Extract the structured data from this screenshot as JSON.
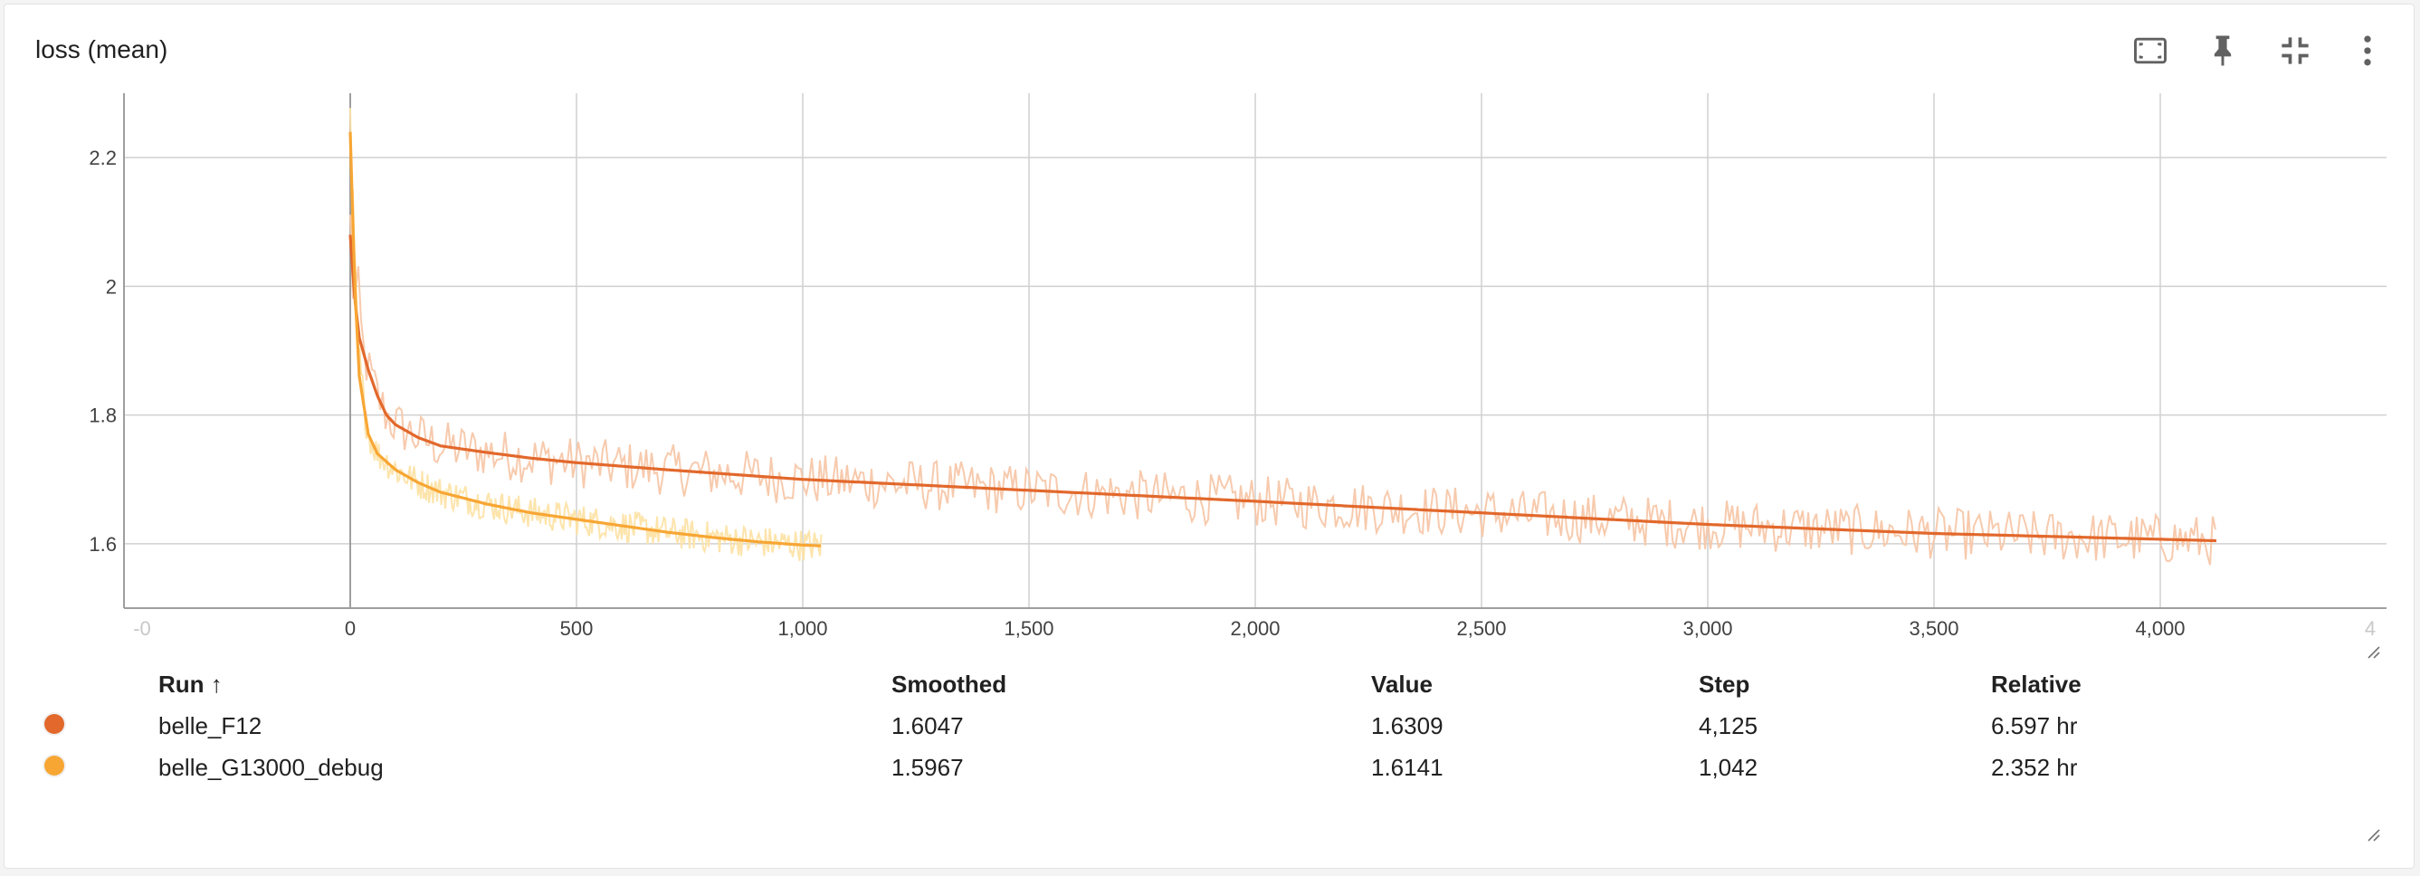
{
  "card": {
    "title": "loss (mean)"
  },
  "toolbar": [
    {
      "name": "fit-domain-button",
      "icon": "fit-domain-icon"
    },
    {
      "name": "pin-button",
      "icon": "pin-icon"
    },
    {
      "name": "collapse-button",
      "icon": "collapse-icon"
    },
    {
      "name": "more-options-button",
      "icon": "more-vert-icon"
    }
  ],
  "colors": {
    "belle_F12": "#e2682c",
    "belle_F12_raw": "#f7c7a9",
    "belle_G13000_debug": "#f7a634",
    "belle_G13000_debug_raw": "#fde3a6",
    "grid": "#d0d0d0",
    "axis": "#9e9e9e"
  },
  "chart_data": {
    "type": "line",
    "title": "loss (mean)",
    "xlim": [
      -500,
      4500
    ],
    "ylim": [
      1.5,
      2.3
    ],
    "x_ticks": [
      0,
      500,
      1000,
      1500,
      2000,
      2500,
      3000,
      3500,
      4000
    ],
    "x_tick_labels": [
      "0",
      "500",
      "1,000",
      "1,500",
      "2,000",
      "2,500",
      "3,000",
      "3,500",
      "4,000"
    ],
    "x_edge_labels": [
      "-0",
      "4"
    ],
    "y_ticks": [
      1.6,
      1.8,
      2.0,
      2.2
    ],
    "y_tick_labels": [
      "1.6",
      "1.8",
      "2",
      "2.2"
    ],
    "grid": true,
    "series": [
      {
        "name": "belle_F12",
        "smoothed": [
          [
            0,
            2.08
          ],
          [
            10,
            1.98
          ],
          [
            20,
            1.92
          ],
          [
            40,
            1.87
          ],
          [
            60,
            1.83
          ],
          [
            80,
            1.8
          ],
          [
            100,
            1.785
          ],
          [
            150,
            1.765
          ],
          [
            200,
            1.752
          ],
          [
            300,
            1.742
          ],
          [
            400,
            1.733
          ],
          [
            500,
            1.726
          ],
          [
            700,
            1.715
          ],
          [
            1000,
            1.7
          ],
          [
            1500,
            1.683
          ],
          [
            2000,
            1.666
          ],
          [
            2500,
            1.648
          ],
          [
            3000,
            1.63
          ],
          [
            3500,
            1.616
          ],
          [
            4000,
            1.607
          ],
          [
            4125,
            1.6047
          ]
        ],
        "raw_max_step": 4125,
        "raw_noise": 0.04
      },
      {
        "name": "belle_G13000_debug",
        "smoothed": [
          [
            0,
            2.24
          ],
          [
            10,
            2.0
          ],
          [
            20,
            1.86
          ],
          [
            40,
            1.77
          ],
          [
            60,
            1.74
          ],
          [
            100,
            1.715
          ],
          [
            150,
            1.695
          ],
          [
            200,
            1.68
          ],
          [
            300,
            1.662
          ],
          [
            400,
            1.648
          ],
          [
            500,
            1.638
          ],
          [
            600,
            1.628
          ],
          [
            700,
            1.618
          ],
          [
            800,
            1.61
          ],
          [
            900,
            1.603
          ],
          [
            1000,
            1.598
          ],
          [
            1042,
            1.5967
          ]
        ],
        "raw_max_step": 1042,
        "raw_noise": 0.025
      }
    ]
  },
  "table": {
    "headers": {
      "run": "Run ↑",
      "smoothed": "Smoothed",
      "value": "Value",
      "step": "Step",
      "relative": "Relative"
    },
    "rows": [
      {
        "run": "belle_F12",
        "smoothed": "1.6047",
        "value": "1.6309",
        "step": "4,125",
        "relative": "6.597 hr",
        "color": "#e2682c"
      },
      {
        "run": "belle_G13000_debug",
        "smoothed": "1.5967",
        "value": "1.6141",
        "step": "1,042",
        "relative": "2.352 hr",
        "color": "#f7a634"
      }
    ]
  }
}
